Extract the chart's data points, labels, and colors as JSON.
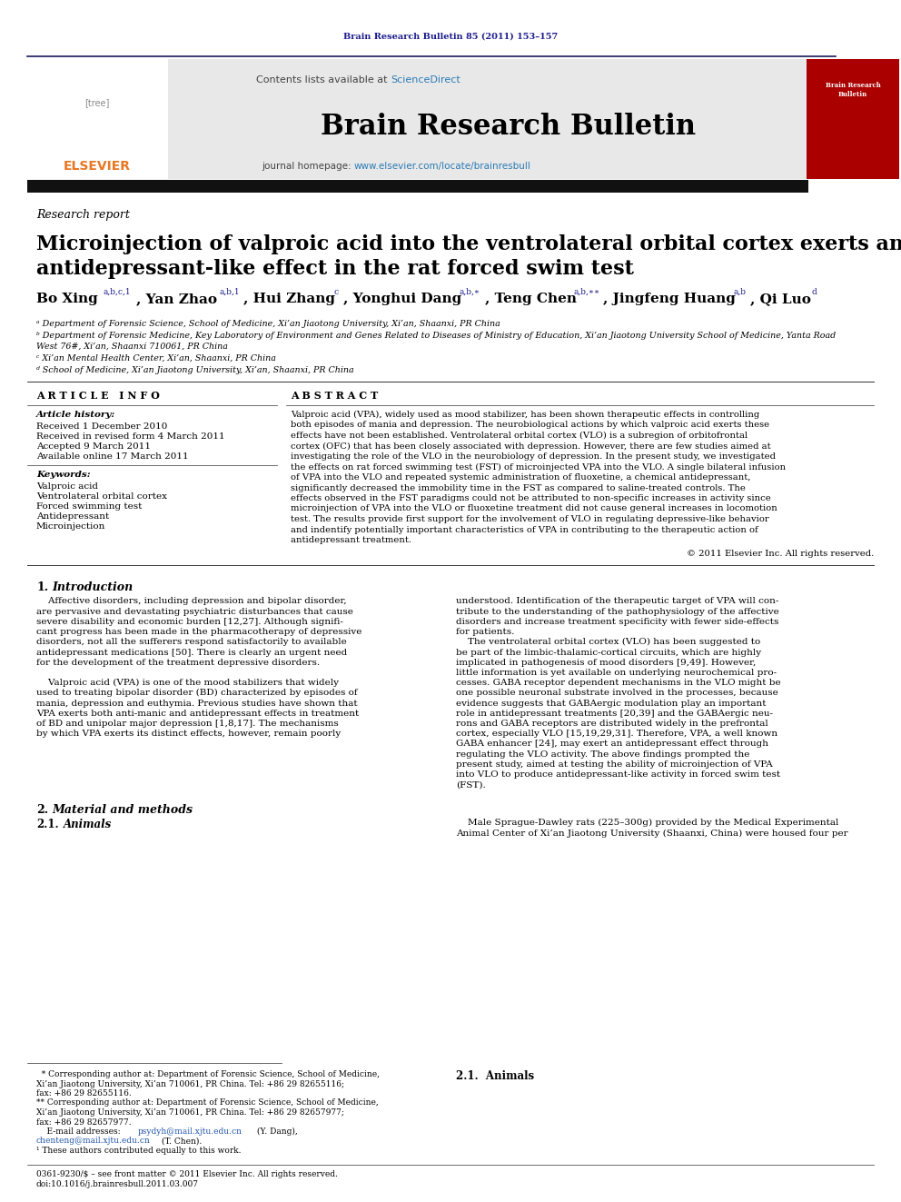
{
  "bg_color": "#ffffff",
  "journal_ref": "Brain Research Bulletin 85 (2011) 153–157",
  "journal_ref_color": "#1a1a8c",
  "contents_text": "Contents lists available at ",
  "sciencedirect_text": "ScienceDirect",
  "sciencedirect_color": "#2b7bb5",
  "journal_title": "Brain Research Bulletin",
  "journal_homepage_prefix": "journal homepage: ",
  "journal_homepage_url": "www.elsevier.com/locate/brainresbull",
  "journal_homepage_color": "#2b7bb5",
  "header_bg_color": "#e8e8e8",
  "section_label": "Research report",
  "paper_title_line1": "Microinjection of valproic acid into the ventrolateral orbital cortex exerts an",
  "paper_title_line2": "antidepressant-like effect in the rat forced swim test",
  "affil_a": "ᵃ Department of Forensic Science, School of Medicine, Xi’an Jiaotong University, Xi’an, Shaanxi, PR China",
  "affil_b1": "ᵇ Department of Forensic Medicine, Key Laboratory of Environment and Genes Related to Diseases of Ministry of Education, Xi’an Jiaotong University School of Medicine, Yanta Road",
  "affil_b2": "West 76#, Xi’an, Shaanxi 710061, PR China",
  "affil_c": "ᶜ Xi’an Mental Health Center, Xi’an, Shaanxi, PR China",
  "affil_d": "ᵈ School of Medicine, Xi’an Jiaotong University, Xi’an, Shaanxi, PR China",
  "article_info_header": "A R T I C L E   I N F O",
  "abstract_header": "A B S T R A C T",
  "article_history_label": "Article history:",
  "received": "Received 1 December 2010",
  "revised": "Received in revised form 4 March 2011",
  "accepted": "Accepted 9 March 2011",
  "available": "Available online 17 March 2011",
  "keywords_label": "Keywords:",
  "keyword1": "Valproic acid",
  "keyword2": "Ventrolateral orbital cortex",
  "keyword3": "Forced swimming test",
  "keyword4": "Antidepressant",
  "keyword5": "Microinjection",
  "copyright": "© 2011 Elsevier Inc. All rights reserved.",
  "issn_line": "0361-9230/$ – see front matter © 2011 Elsevier Inc. All rights reserved.",
  "doi_line": "doi:10.1016/j.brainresbull.2011.03.007"
}
